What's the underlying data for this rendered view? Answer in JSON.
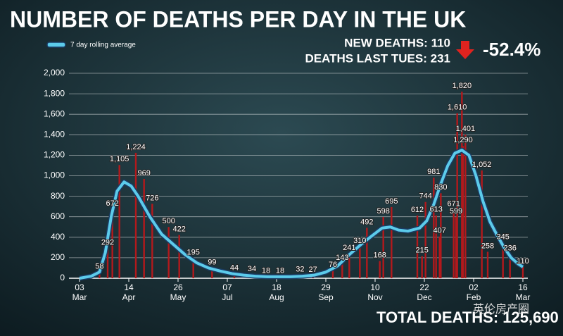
{
  "chart_data": {
    "type": "bar",
    "title": "NUMBER OF DEATHS PER DAY IN THE UK",
    "stats": [
      "NEW DEATHS: 110",
      "DEATHS LAST TUES: 231"
    ],
    "change": "-52.4%",
    "total": "TOTAL DEATHS: 125,690",
    "watermark": "英伦房产圈",
    "xlim": [
      0,
      378
    ],
    "xticks": [
      {
        "value": 0,
        "label": "03"
      },
      {
        "value": 42,
        "label": "14"
      },
      {
        "value": 84,
        "label": "26"
      },
      {
        "value": 126,
        "label": "07"
      },
      {
        "value": 168,
        "label": "18"
      },
      {
        "value": 210,
        "label": "29"
      },
      {
        "value": 252,
        "label": "10"
      },
      {
        "value": 294,
        "label": "22"
      },
      {
        "value": 336,
        "label": "02"
      },
      {
        "value": 378,
        "label": "16"
      }
    ],
    "xtick_months": [
      "Mar",
      "Apr",
      "May",
      "Jul",
      "Aug",
      "Sep",
      "Nov",
      "Dec",
      "Feb",
      "Mar"
    ],
    "ylim": [
      0,
      2000
    ],
    "yticks": [
      0,
      200,
      400,
      600,
      800,
      {
        "value": 1000,
        "label": "1,000"
      },
      {
        "value": 1200,
        "label": "1,200"
      },
      {
        "value": 1400,
        "label": "1,400"
      },
      {
        "value": 1600,
        "label": "1,600"
      },
      {
        "value": 1800,
        "label": "1,800"
      },
      {
        "value": 2000,
        "label": "2,000"
      }
    ],
    "grid": true,
    "daily": {
      "color": "#b3191c",
      "x": [
        17,
        24,
        28,
        34,
        48,
        55,
        62,
        76,
        85,
        97,
        113,
        132,
        147,
        159,
        171,
        188,
        199,
        216,
        224,
        230,
        239,
        245,
        256,
        259,
        266,
        288,
        292,
        295,
        302,
        304,
        307,
        308,
        319,
        321,
        322,
        326,
        327,
        329,
        343,
        348,
        361,
        367,
        378
      ],
      "values": [
        58,
        292,
        672,
        1105,
        1224,
        969,
        726,
        500,
        422,
        195,
        99,
        44,
        34,
        18,
        18,
        32,
        27,
        76,
        143,
        241,
        310,
        492,
        168,
        598,
        695,
        612,
        215,
        744,
        981,
        613,
        407,
        830,
        671,
        599,
        1610,
        1820,
        1290,
        1401,
        1052,
        258,
        345,
        236,
        110
      ],
      "value_labels": [
        "58",
        "292",
        "672",
        "1,105",
        "1,224",
        "969",
        "726",
        "500",
        "422",
        "195",
        "99",
        "44",
        "34",
        "18",
        "18",
        "32",
        "27",
        "76",
        "143",
        "241",
        "310",
        "492",
        "168",
        "598",
        "695",
        "612",
        "215",
        "744",
        "981",
        "613",
        "407",
        "830",
        "671",
        "599",
        "1,610",
        "1,820",
        "1,290",
        "1,401",
        "1,052",
        "258",
        "345",
        "236",
        "110"
      ]
    },
    "series": [
      {
        "name": "7 day rolling average",
        "color": "#5ccbea",
        "x": [
          0,
          10,
          17,
          22,
          27,
          32,
          38,
          44,
          50,
          60,
          70,
          80,
          90,
          100,
          110,
          120,
          130,
          140,
          150,
          160,
          170,
          180,
          190,
          200,
          210,
          220,
          230,
          240,
          250,
          258,
          265,
          272,
          280,
          290,
          296,
          302,
          308,
          314,
          320,
          326,
          332,
          338,
          344,
          350,
          356,
          362,
          368,
          374,
          378
        ],
        "values": [
          0,
          20,
          60,
          250,
          600,
          850,
          940,
          900,
          800,
          600,
          430,
          330,
          230,
          150,
          100,
          70,
          45,
          30,
          20,
          15,
          15,
          15,
          20,
          30,
          60,
          120,
          230,
          330,
          420,
          490,
          500,
          470,
          460,
          490,
          560,
          720,
          920,
          1100,
          1220,
          1250,
          1200,
          1000,
          750,
          550,
          420,
          300,
          200,
          140,
          110
        ]
      }
    ]
  }
}
